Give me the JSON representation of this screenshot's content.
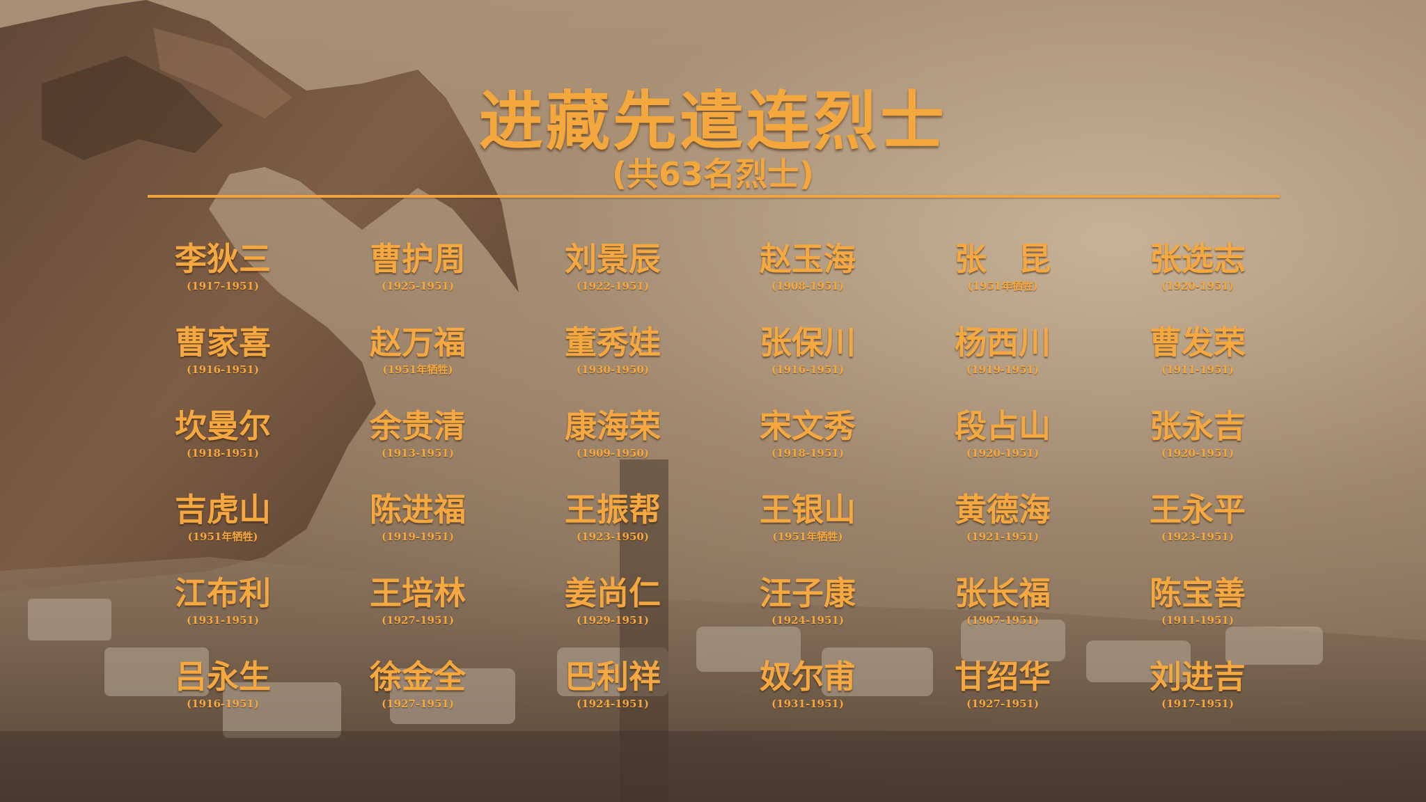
{
  "title": "进藏先遣连烈士",
  "subtitle": "(共63名烈士)",
  "martyrs": [
    {
      "name": "李狄三",
      "years": "(1917-1951)"
    },
    {
      "name": "曹护周",
      "years": "(1925-1951)"
    },
    {
      "name": "刘景辰",
      "years": "(1922-1951)"
    },
    {
      "name": "赵玉海",
      "years": "(1908-1951)"
    },
    {
      "name": "张　昆",
      "years": "(1951年牺牲)"
    },
    {
      "name": "张选志",
      "years": "(1920-1951)"
    },
    {
      "name": "曹家喜",
      "years": "(1916-1951)"
    },
    {
      "name": "赵万福",
      "years": "(1951年牺牲)"
    },
    {
      "name": "董秀娃",
      "years": "(1930-1950)"
    },
    {
      "name": "张保川",
      "years": "(1916-1951)"
    },
    {
      "name": "杨西川",
      "years": "(1919-1951)"
    },
    {
      "name": "曹发荣",
      "years": "(1911-1951)"
    },
    {
      "name": "坎曼尔",
      "years": "(1918-1951)"
    },
    {
      "name": "余贵清",
      "years": "(1913-1951)"
    },
    {
      "name": "康海荣",
      "years": "(1909-1950)"
    },
    {
      "name": "宋文秀",
      "years": "(1918-1951)"
    },
    {
      "name": "段占山",
      "years": "(1920-1951)"
    },
    {
      "name": "张永吉",
      "years": "(1920-1951)"
    },
    {
      "name": "吉虎山",
      "years": "(1951年牺牲)"
    },
    {
      "name": "陈进福",
      "years": "(1919-1951)"
    },
    {
      "name": "王振帮",
      "years": "(1923-1950)"
    },
    {
      "name": "王银山",
      "years": "(1951年牺牲)"
    },
    {
      "name": "黄德海",
      "years": "(1921-1951)"
    },
    {
      "name": "王永平",
      "years": "(1923-1951)"
    },
    {
      "name": "江布利",
      "years": "(1931-1951)"
    },
    {
      "name": "王培林",
      "years": "(1927-1951)"
    },
    {
      "name": "姜尚仁",
      "years": "(1929-1951)"
    },
    {
      "name": "汪子康",
      "years": "(1924-1951)"
    },
    {
      "name": "张长福",
      "years": "(1907-1951)"
    },
    {
      "name": "陈宝善",
      "years": "(1911-1951)"
    },
    {
      "name": "吕永生",
      "years": "(1916-1951)"
    },
    {
      "name": "徐金全",
      "years": "(1927-1951)"
    },
    {
      "name": "巴利祥",
      "years": "(1924-1951)"
    },
    {
      "name": "奴尔甫",
      "years": "(1931-1951)"
    },
    {
      "name": "甘绍华",
      "years": "(1927-1951)"
    },
    {
      "name": "刘进吉",
      "years": "(1917-1951)"
    }
  ]
}
